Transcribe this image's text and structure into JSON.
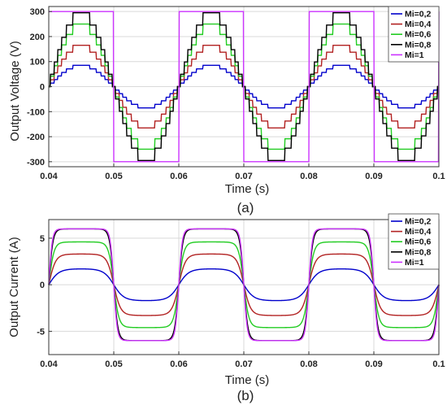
{
  "chart_data": [
    {
      "type": "line",
      "panel_label": "(a)",
      "xlabel": "Time (s)",
      "ylabel": "Output Voltage (V)",
      "xlim": [
        0.04,
        0.1
      ],
      "ylim": [
        -320,
        320
      ],
      "x_ticks": [
        "0.04",
        "0.05",
        "0.06",
        "0.07",
        "0.08",
        "0.09",
        "0.1"
      ],
      "x_tick_values": [
        0.04,
        0.05,
        0.06,
        0.07,
        0.08,
        0.09,
        0.1
      ],
      "y_ticks": [
        "300",
        "200",
        "100",
        "0",
        "-100",
        "-200",
        "-300"
      ],
      "y_tick_values": [
        300,
        200,
        100,
        0,
        -100,
        -200,
        -300
      ],
      "grid": true,
      "legend_position": "top-right",
      "waveform": "staircase",
      "frequency_hz": 50,
      "series": [
        {
          "name": "Mi=0,2",
          "color": "#0000cc",
          "amplitude": 85
        },
        {
          "name": "Mi=0,4",
          "color": "#b22222",
          "amplitude": 165
        },
        {
          "name": "Mi=0,6",
          "color": "#22cc22",
          "amplitude": 250
        },
        {
          "name": "Mi=0,8",
          "color": "#000000",
          "amplitude": 295
        },
        {
          "name": "Mi=1",
          "color": "#cc33ff",
          "amplitude": 300
        }
      ]
    },
    {
      "type": "line",
      "panel_label": "(b)",
      "xlabel": "Time (s)",
      "ylabel": "Output Current (A)",
      "xlim": [
        0.04,
        0.1
      ],
      "ylim": [
        -7.5,
        7
      ],
      "x_ticks": [
        "0.04",
        "0.05",
        "0.06",
        "0.07",
        "0.08",
        "0.09",
        "0.1"
      ],
      "x_tick_values": [
        0.04,
        0.05,
        0.06,
        0.07,
        0.08,
        0.09,
        0.1
      ],
      "y_ticks": [
        "5",
        "0",
        "-5"
      ],
      "y_tick_values": [
        5,
        0,
        -5
      ],
      "grid": true,
      "legend_position": "top-right",
      "waveform": "smoothed",
      "frequency_hz": 50,
      "series": [
        {
          "name": "Mi=0,2",
          "color": "#0000cc",
          "amplitude": 1.7
        },
        {
          "name": "Mi=0,4",
          "color": "#b22222",
          "amplitude": 3.3
        },
        {
          "name": "Mi=0,6",
          "color": "#22cc22",
          "amplitude": 4.6
        },
        {
          "name": "Mi=0,8",
          "color": "#000000",
          "amplitude": 6.0
        },
        {
          "name": "Mi=1",
          "color": "#cc33ff",
          "amplitude": 6.0
        }
      ]
    }
  ]
}
